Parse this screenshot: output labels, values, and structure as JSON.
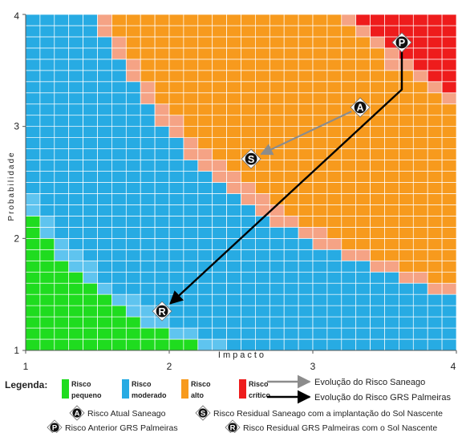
{
  "chart_data": {
    "type": "heatmap",
    "title": "",
    "xlabel": "Impacto",
    "ylabel": "Probabilidade",
    "xlim": [
      1,
      4
    ],
    "ylim": [
      1,
      4
    ],
    "x_ticks": [
      "1",
      "2",
      "3",
      "4"
    ],
    "y_ticks": [
      "1",
      "2",
      "3",
      "4"
    ],
    "grid": "on",
    "zones": [
      {
        "id": "pequeno",
        "line1": "Risco",
        "line2": "pequeno",
        "color": "#1fdc1f"
      },
      {
        "id": "moderado",
        "line1": "Risco",
        "line2": "moderado",
        "color": "#27abe3"
      },
      {
        "id": "alto",
        "line1": "Risco",
        "line2": "alto",
        "color": "#f79a1d"
      },
      {
        "id": "critico",
        "line1": "Risco",
        "line2": "crítico",
        "color": "#ee1c1c"
      }
    ],
    "points": [
      {
        "marker": "A",
        "x": 3.33,
        "y": 3.17
      },
      {
        "marker": "S",
        "x": 2.57,
        "y": 2.71
      },
      {
        "marker": "P",
        "x": 3.62,
        "y": 3.75
      },
      {
        "marker": "R",
        "x": 1.95,
        "y": 1.35
      }
    ],
    "trajectories": [
      {
        "label": "Evolução do Risco Saneago",
        "color": "#8c8c8c",
        "path": [
          [
            3.33,
            3.17
          ],
          [
            2.57,
            2.71
          ]
        ]
      },
      {
        "label": "Evolução do Risco GRS Palmeiras",
        "color": "#000000",
        "path": [
          [
            3.62,
            3.75
          ],
          [
            3.62,
            3.33
          ],
          [
            1.95,
            1.35
          ]
        ]
      }
    ]
  },
  "legend": {
    "title": "Legenda:",
    "markers": [
      {
        "marker": "A",
        "text": "Risco Atual Saneago"
      },
      {
        "marker": "S",
        "text": "Risco Residual Saneago com a implantação do Sol Nascente"
      },
      {
        "marker": "P",
        "text": "Risco Anterior GRS Palmeiras"
      },
      {
        "marker": "R",
        "text": "Risco Residual GRS Palmeiras com o Sol Nascente"
      }
    ]
  },
  "colors": {
    "transition": "#f5a385",
    "light_blue": "#5fc4ef",
    "grid_line": "#ffffff"
  }
}
